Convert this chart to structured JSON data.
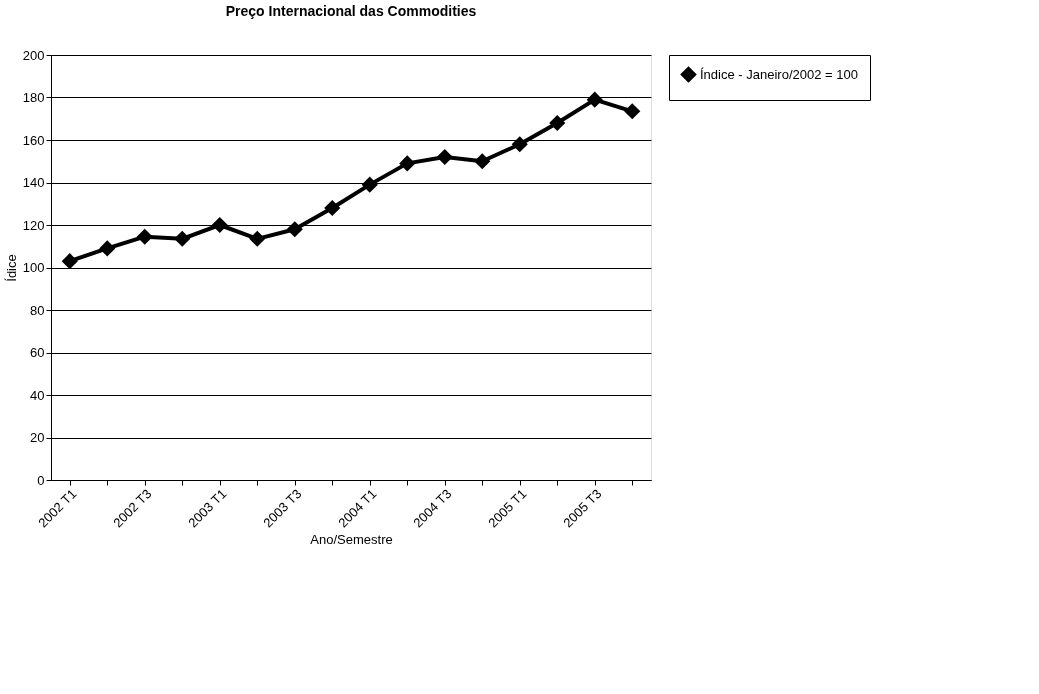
{
  "chart_data": {
    "type": "line",
    "title": "Preço Internacional das Commodities",
    "xlabel": "Ano/Semestre",
    "ylabel": "Ídice",
    "categories": [
      "2002 T1",
      null,
      "2002 T3",
      null,
      "2003 T1",
      null,
      "2003 T3",
      null,
      "2004 T1",
      null,
      "2004 T3",
      null,
      "2005 T1",
      null,
      "2005 T3",
      null
    ],
    "series": [
      {
        "name": "Índice - Janeiro/2002 = 100",
        "color": "#000000",
        "values": [
          103,
          109,
          114.5,
          113.5,
          120,
          113.5,
          118,
          128,
          139,
          149,
          152,
          150,
          158,
          168,
          179,
          173.5
        ]
      }
    ],
    "ylim": [
      0,
      200
    ],
    "yticks": [
      0,
      20,
      40,
      60,
      80,
      100,
      120,
      140,
      160,
      180,
      200
    ],
    "grid": "y",
    "legend": "right",
    "marker": "diamond",
    "line_style": "solid"
  }
}
